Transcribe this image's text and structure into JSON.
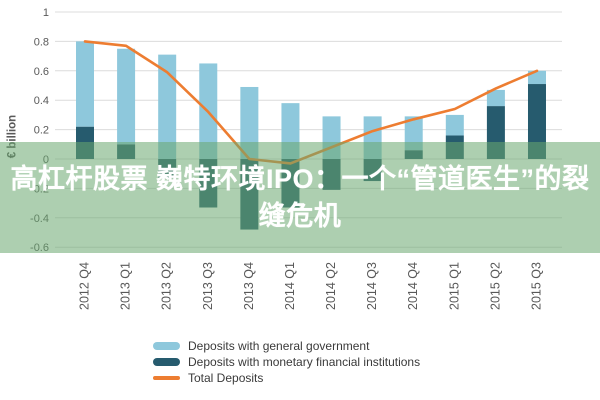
{
  "overlay": {
    "title_line1": "高杠杆股票 巍特环境IPO：一个“管道医生”的裂",
    "title_line2": "缝危机",
    "band_color": "rgba(106,168,112,0.55)",
    "text_color": "#ffffff"
  },
  "chart_data": {
    "type": "bar",
    "subtype": "stacked-bar-with-line",
    "title": "",
    "ylabel": "€ billion",
    "xlabel": "",
    "categories": [
      "2012 Q4",
      "2013 Q1",
      "2013 Q2",
      "2013 Q3",
      "2013 Q4",
      "2014 Q1",
      "2014 Q2",
      "2014 Q3",
      "2014 Q4",
      "2015 Q1",
      "2015 Q2",
      "2015 Q3"
    ],
    "series": [
      {
        "name": "Deposits with general government",
        "type": "bar",
        "color": "#8ec8dc",
        "values": [
          0.58,
          0.65,
          0.71,
          0.65,
          0.49,
          0.38,
          0.29,
          0.29,
          0.23,
          0.14,
          0.11,
          0.09
        ]
      },
      {
        "name": "Deposits with monetary financial institutions",
        "type": "bar",
        "color": "#265b6e",
        "values": [
          0.22,
          0.1,
          -0.13,
          -0.33,
          -0.48,
          -0.33,
          -0.21,
          -0.15,
          0.06,
          0.16,
          0.36,
          0.51
        ]
      },
      {
        "name": "Total Deposits",
        "type": "line",
        "color": "#ed7d31",
        "values": [
          0.8,
          0.77,
          0.59,
          0.32,
          0.0,
          -0.03,
          0.08,
          0.19,
          0.27,
          0.34,
          0.48,
          0.6
        ]
      }
    ],
    "ylim": [
      -0.6,
      1.0
    ],
    "y_ticks": [
      1,
      0.8,
      0.6,
      0.4,
      0.2,
      0,
      -0.2,
      -0.4,
      -0.6
    ],
    "grid": true,
    "stacked": true,
    "legend_position": "bottom-left",
    "grid_color": "#dcdcdc",
    "tick_color": "#595959"
  }
}
